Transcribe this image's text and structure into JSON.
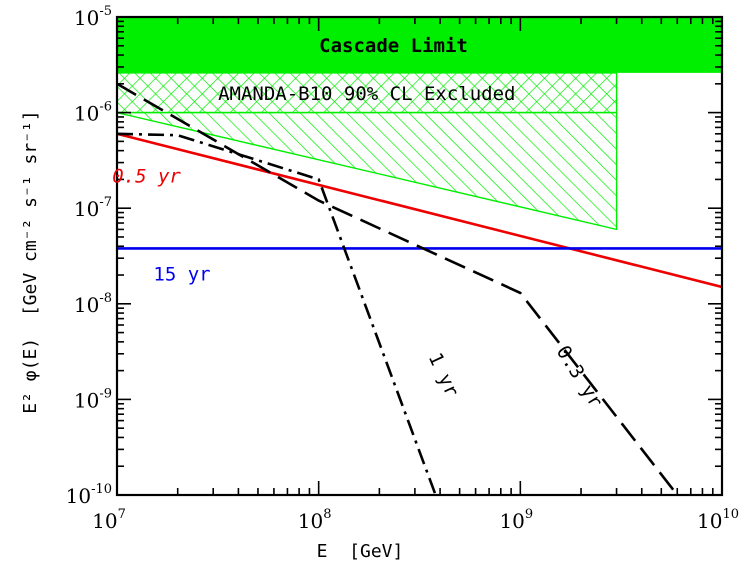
{
  "chart_data": {
    "type": "line",
    "xlabel": "E  [GeV]",
    "ylabel": "E² φ(E)  [GeV cm⁻² s⁻¹ sr⁻¹]",
    "xscale": "log",
    "yscale": "log",
    "xlim": [
      10000000.0,
      10000000000.0
    ],
    "ylim": [
      1e-10,
      1e-05
    ],
    "x_ticks": [
      {
        "value": 10000000.0,
        "base": "10",
        "exp": "7"
      },
      {
        "value": 100000000.0,
        "base": "10",
        "exp": "8"
      },
      {
        "value": 1000000000.0,
        "base": "10",
        "exp": "9"
      },
      {
        "value": 10000000000.0,
        "base": "10",
        "exp": "10"
      }
    ],
    "y_ticks": [
      {
        "value": 1e-10,
        "base": "10",
        "exp": "-10"
      },
      {
        "value": 1e-09,
        "base": "10",
        "exp": "-9"
      },
      {
        "value": 1e-08,
        "base": "10",
        "exp": "-8"
      },
      {
        "value": 1e-07,
        "base": "10",
        "exp": "-7"
      },
      {
        "value": 1e-06,
        "base": "10",
        "exp": "-6"
      },
      {
        "value": 1e-05,
        "base": "10",
        "exp": "-5"
      }
    ],
    "regions": [
      {
        "label": "Cascade Limit",
        "fill": "solid",
        "color": "#00ee00",
        "points": [
          [
            10000000.0,
            1e-05
          ],
          [
            10000000000.0,
            1e-05
          ],
          [
            10000000000.0,
            2.6e-06
          ],
          [
            10000000.0,
            2.6e-06
          ]
        ]
      },
      {
        "label": "AMANDA-B10 90% CL Excluded",
        "fill": "crosshatch",
        "color": "#00ee00",
        "points": [
          [
            10000000.0,
            2.6e-06
          ],
          [
            3000000000.0,
            2.6e-06
          ],
          [
            3000000000.0,
            1e-06
          ],
          [
            10000000.0,
            1e-06
          ]
        ]
      },
      {
        "label": "",
        "fill": "diagonal-hatch",
        "color": "#00ee00",
        "points": [
          [
            10000000.0,
            1e-06
          ],
          [
            3000000000.0,
            1e-06
          ],
          [
            3000000000.0,
            6e-08
          ],
          [
            10000000.0,
            1e-06
          ]
        ]
      }
    ],
    "series": [
      {
        "name": "0.5 yr",
        "color": "#ee0000",
        "dash": "solid",
        "x": [
          10000000.0,
          10000000000.0
        ],
        "y": [
          6e-07,
          1.5e-08
        ]
      },
      {
        "name": "15 yr",
        "color": "#0000ee",
        "dash": "solid",
        "x": [
          10000000.0,
          10000000000.0
        ],
        "y": [
          3.8e-08,
          3.8e-08
        ]
      },
      {
        "name": "1 yr",
        "color": "#000000",
        "dash": "dashdot",
        "x": [
          10000000.0,
          20000000.0,
          100000000.0,
          380000000.0
        ],
        "y": [
          6e-07,
          5.8e-07,
          2e-07,
          1e-10
        ]
      },
      {
        "name": "0.3 yr",
        "color": "#000000",
        "dash": "dashed",
        "x": [
          10000000.0,
          100000000.0,
          1000000000.0,
          6000000000.0
        ],
        "y": [
          2e-06,
          1.2e-07,
          1.3e-08,
          1e-10
        ]
      }
    ],
    "annotations": [
      {
        "text": "0.5 yr",
        "color": "#ee0000",
        "x": 14000000.0,
        "y": 1.85e-07,
        "rotate": 0,
        "italic": true
      },
      {
        "text": "15 yr",
        "color": "#0000ee",
        "x": 21000000.0,
        "y": 1.75e-08,
        "rotate": 0,
        "italic": false
      },
      {
        "text": "1 yr",
        "color": "#000000",
        "x": 390000000.0,
        "y": 1.7e-09,
        "rotate": 65,
        "italic": false
      },
      {
        "text": "0.3 yr",
        "color": "#000000",
        "x": 1850000000.0,
        "y": 1.6e-09,
        "rotate": 58,
        "italic": false
      }
    ]
  }
}
